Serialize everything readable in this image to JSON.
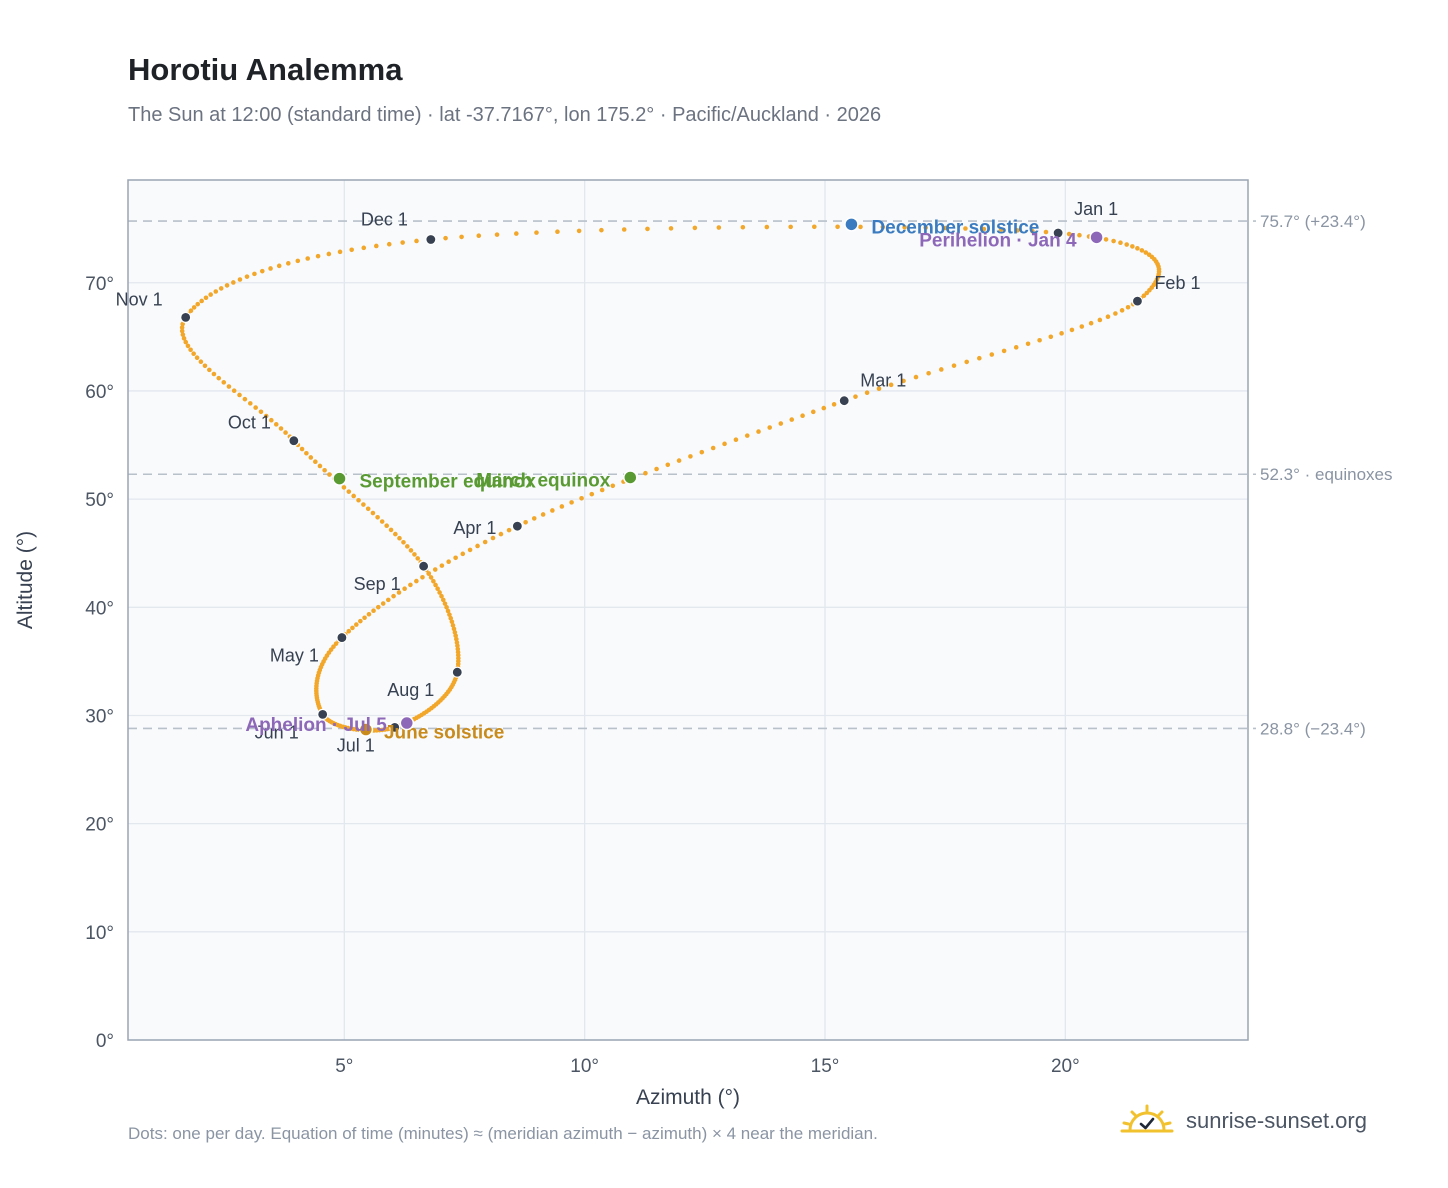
{
  "title": "Horotiu Analemma",
  "subtitle": "The Sun at 12:00 (standard time) · lat -37.7167°, lon 175.2° · Pacific/Auckland · 2026",
  "footnote": "Dots: one per day. Equation of time (minutes) ≈ (meridian azimuth − azimuth) × 4 near the meridian.",
  "brand": "sunrise-sunset.org",
  "colors": {
    "curve": "#f2a72a",
    "month_marker": "#374151",
    "equinox": "#5a9a32",
    "december_solstice": "#3b7bbf",
    "june_solstice": "#c98b1c",
    "perihelion_aphelion": "#8e68b8",
    "reference_line": "#b8c0ca",
    "plot_bg": "#f8fafc",
    "grid": "#e3e8ee",
    "axis_text": "#4b5563",
    "brand_sun": "#f2c12e"
  },
  "chart_data": {
    "type": "scatter",
    "xlabel": "Azimuth (°)",
    "ylabel": "Altitude (°)",
    "xlim": [
      0.5,
      23.8
    ],
    "ylim": [
      0,
      79.5
    ],
    "xticks": [
      5,
      10,
      15,
      20
    ],
    "xtick_labels": [
      "5°",
      "10°",
      "15°",
      "20°"
    ],
    "yticks": [
      0,
      10,
      20,
      30,
      40,
      50,
      60,
      70
    ],
    "ytick_labels": [
      "0°",
      "10°",
      "20°",
      "30°",
      "40°",
      "50°",
      "60°",
      "70°"
    ],
    "grid": true,
    "curve_description": "one dot per day",
    "reference_lines": [
      {
        "y": 75.7,
        "label": "75.7° (+23.4°)"
      },
      {
        "y": 52.3,
        "label": "52.3° · equinoxes"
      },
      {
        "y": 28.8,
        "label": "28.8° (−23.4°)"
      }
    ],
    "month_markers": [
      {
        "label": "Jan 1",
        "x": 19.85,
        "y": 74.6
      },
      {
        "label": "Feb 1",
        "x": 21.5,
        "y": 68.3
      },
      {
        "label": "Mar 1",
        "x": 15.4,
        "y": 59.1
      },
      {
        "label": "Apr 1",
        "x": 8.6,
        "y": 47.5
      },
      {
        "label": "May 1",
        "x": 4.95,
        "y": 37.2
      },
      {
        "label": "Jun 1",
        "x": 4.55,
        "y": 30.1
      },
      {
        "label": "Jul 1",
        "x": 6.05,
        "y": 28.9
      },
      {
        "label": "Aug 1",
        "x": 7.35,
        "y": 34.0
      },
      {
        "label": "Sep 1",
        "x": 6.65,
        "y": 43.8
      },
      {
        "label": "Oct 1",
        "x": 3.95,
        "y": 55.4
      },
      {
        "label": "Nov 1",
        "x": 1.7,
        "y": 66.8
      },
      {
        "label": "Dec 1",
        "x": 6.8,
        "y": 74.0
      }
    ],
    "events": [
      {
        "label": "December solstice",
        "x": 15.55,
        "y": 75.4,
        "kind": "december_solstice"
      },
      {
        "label": "Perihelion · Jan 4",
        "x": 20.65,
        "y": 74.2,
        "kind": "perihelion_aphelion"
      },
      {
        "label": "March equinox",
        "x": 10.95,
        "y": 52.0,
        "kind": "equinox"
      },
      {
        "label": "September equinox",
        "x": 4.9,
        "y": 51.9,
        "kind": "equinox"
      },
      {
        "label": "June solstice",
        "x": 5.45,
        "y": 28.7,
        "kind": "june_solstice"
      },
      {
        "label": "Aphelion · Jul 5",
        "x": 6.3,
        "y": 29.3,
        "kind": "perihelion_aphelion"
      }
    ]
  }
}
